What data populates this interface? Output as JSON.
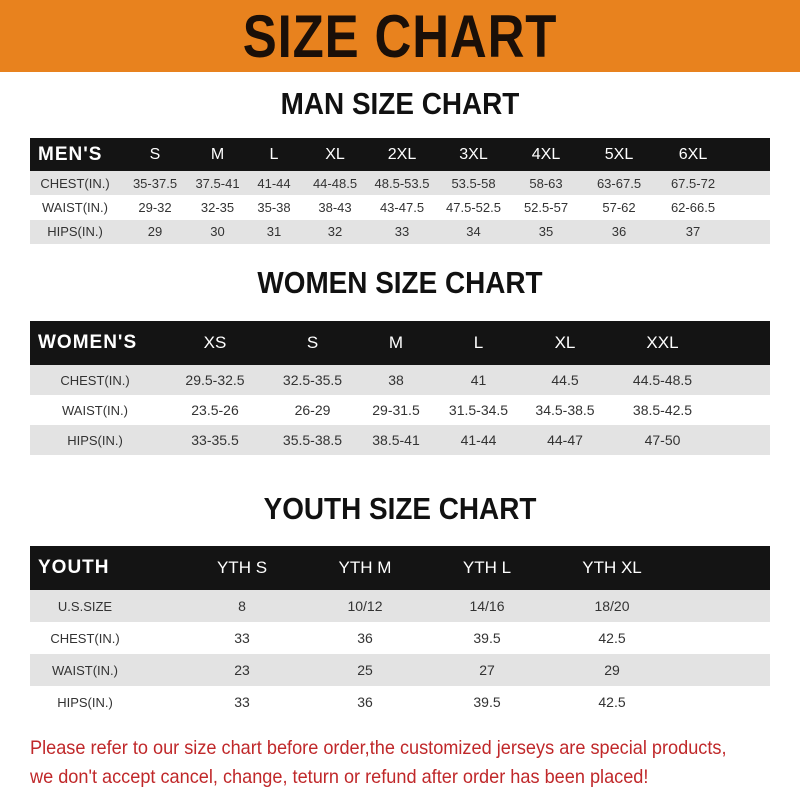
{
  "banner_title": "SIZE CHART",
  "men": {
    "title": "MAN SIZE CHART",
    "header": "MEN'S",
    "sizes": [
      "S",
      "M",
      "L",
      "XL",
      "2XL",
      "3XL",
      "4XL",
      "5XL",
      "6XL"
    ],
    "rows": [
      {
        "label": "CHEST(IN.)",
        "values": [
          "35-37.5",
          "37.5-41",
          "41-44",
          "44-48.5",
          "48.5-53.5",
          "53.5-58",
          "58-63",
          "63-67.5",
          "67.5-72"
        ]
      },
      {
        "label": "WAIST(IN.)",
        "values": [
          "29-32",
          "32-35",
          "35-38",
          "38-43",
          "43-47.5",
          "47.5-52.5",
          "52.5-57",
          "57-62",
          "62-66.5"
        ]
      },
      {
        "label": "HIPS(IN.)",
        "values": [
          "29",
          "30",
          "31",
          "32",
          "33",
          "34",
          "35",
          "36",
          "37"
        ]
      }
    ]
  },
  "women": {
    "title": "WOMEN SIZE CHART",
    "header": "WOMEN'S",
    "sizes": [
      "XS",
      "S",
      "M",
      "L",
      "XL",
      "XXL"
    ],
    "rows": [
      {
        "label": "CHEST(IN.)",
        "values": [
          "29.5-32.5",
          "32.5-35.5",
          "38",
          "41",
          "44.5",
          "44.5-48.5"
        ]
      },
      {
        "label": "WAIST(IN.)",
        "values": [
          "23.5-26",
          "26-29",
          "29-31.5",
          "31.5-34.5",
          "34.5-38.5",
          "38.5-42.5"
        ]
      },
      {
        "label": "HIPS(IN.)",
        "values": [
          "33-35.5",
          "35.5-38.5",
          "38.5-41",
          "41-44",
          "44-47",
          "47-50"
        ]
      }
    ]
  },
  "youth": {
    "title": "YOUTH SIZE CHART",
    "header": "YOUTH",
    "sizes": [
      "YTH S",
      "YTH M",
      "YTH L",
      "YTH XL"
    ],
    "rows": [
      {
        "label": "U.S.SIZE",
        "values": [
          "8",
          "10/12",
          "14/16",
          "18/20"
        ]
      },
      {
        "label": "CHEST(IN.)",
        "values": [
          "33",
          "36",
          "39.5",
          "42.5"
        ]
      },
      {
        "label": "WAIST(IN.)",
        "values": [
          "23",
          "25",
          "27",
          "29"
        ]
      },
      {
        "label": "HIPS(IN.)",
        "values": [
          "33",
          "36",
          "39.5",
          "42.5"
        ]
      }
    ]
  },
  "notice": {
    "line1": "Please refer to our size chart before order,the customized jerseys are special products,",
    "line2": "we don't accept cancel, change, teturn or refund after order has been placed!"
  },
  "colors": {
    "banner": "#e8821e",
    "header_row": "#141414",
    "notice": "#c0282a"
  }
}
